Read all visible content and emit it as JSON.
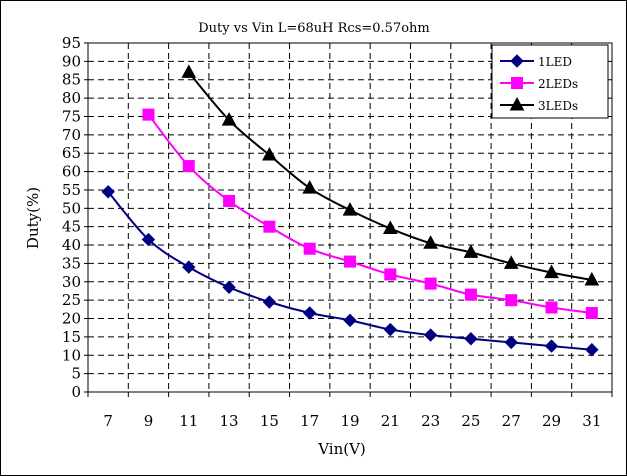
{
  "chart_data": {
    "type": "line",
    "title": "Duty vs Vin L=68uH Rcs=0.57ohm",
    "xlabel": "Vin(V)",
    "ylabel": "Duty(%)",
    "x_ticks": [
      "7",
      "9",
      "11",
      "13",
      "15",
      "17",
      "19",
      "21",
      "23",
      "25",
      "27",
      "29",
      "31"
    ],
    "y_ticks": [
      "0",
      "5",
      "10",
      "15",
      "20",
      "25",
      "30",
      "35",
      "40",
      "45",
      "50",
      "55",
      "60",
      "65",
      "70",
      "75",
      "80",
      "85",
      "90",
      "95"
    ],
    "xlim": [
      6,
      32
    ],
    "ylim": [
      0,
      95
    ],
    "grid": true,
    "legend_position": "top-right",
    "series": [
      {
        "name": "1LED",
        "color": "#000080",
        "marker": "diamond",
        "x": [
          7,
          9,
          11,
          13,
          15,
          17,
          19,
          21,
          23,
          25,
          27,
          29,
          31
        ],
        "y": [
          54.5,
          41.5,
          34,
          28.5,
          24.5,
          21.5,
          19.5,
          17,
          15.5,
          14.5,
          13.5,
          12.5,
          11.5
        ]
      },
      {
        "name": "2LEDs",
        "color": "#ff00ff",
        "marker": "square",
        "x": [
          9,
          11,
          13,
          15,
          17,
          19,
          21,
          23,
          25,
          27,
          29,
          31
        ],
        "y": [
          75.5,
          61.5,
          52,
          45,
          39,
          35.5,
          32,
          29.5,
          26.5,
          25,
          23,
          21.5
        ]
      },
      {
        "name": "3LEDs",
        "color": "#000000",
        "marker": "triangle",
        "x": [
          11,
          13,
          15,
          17,
          19,
          21,
          23,
          25,
          27,
          29,
          31
        ],
        "y": [
          87,
          74,
          64.5,
          55.5,
          49.5,
          44.5,
          40.5,
          38,
          35,
          32.5,
          30.5
        ]
      }
    ]
  }
}
